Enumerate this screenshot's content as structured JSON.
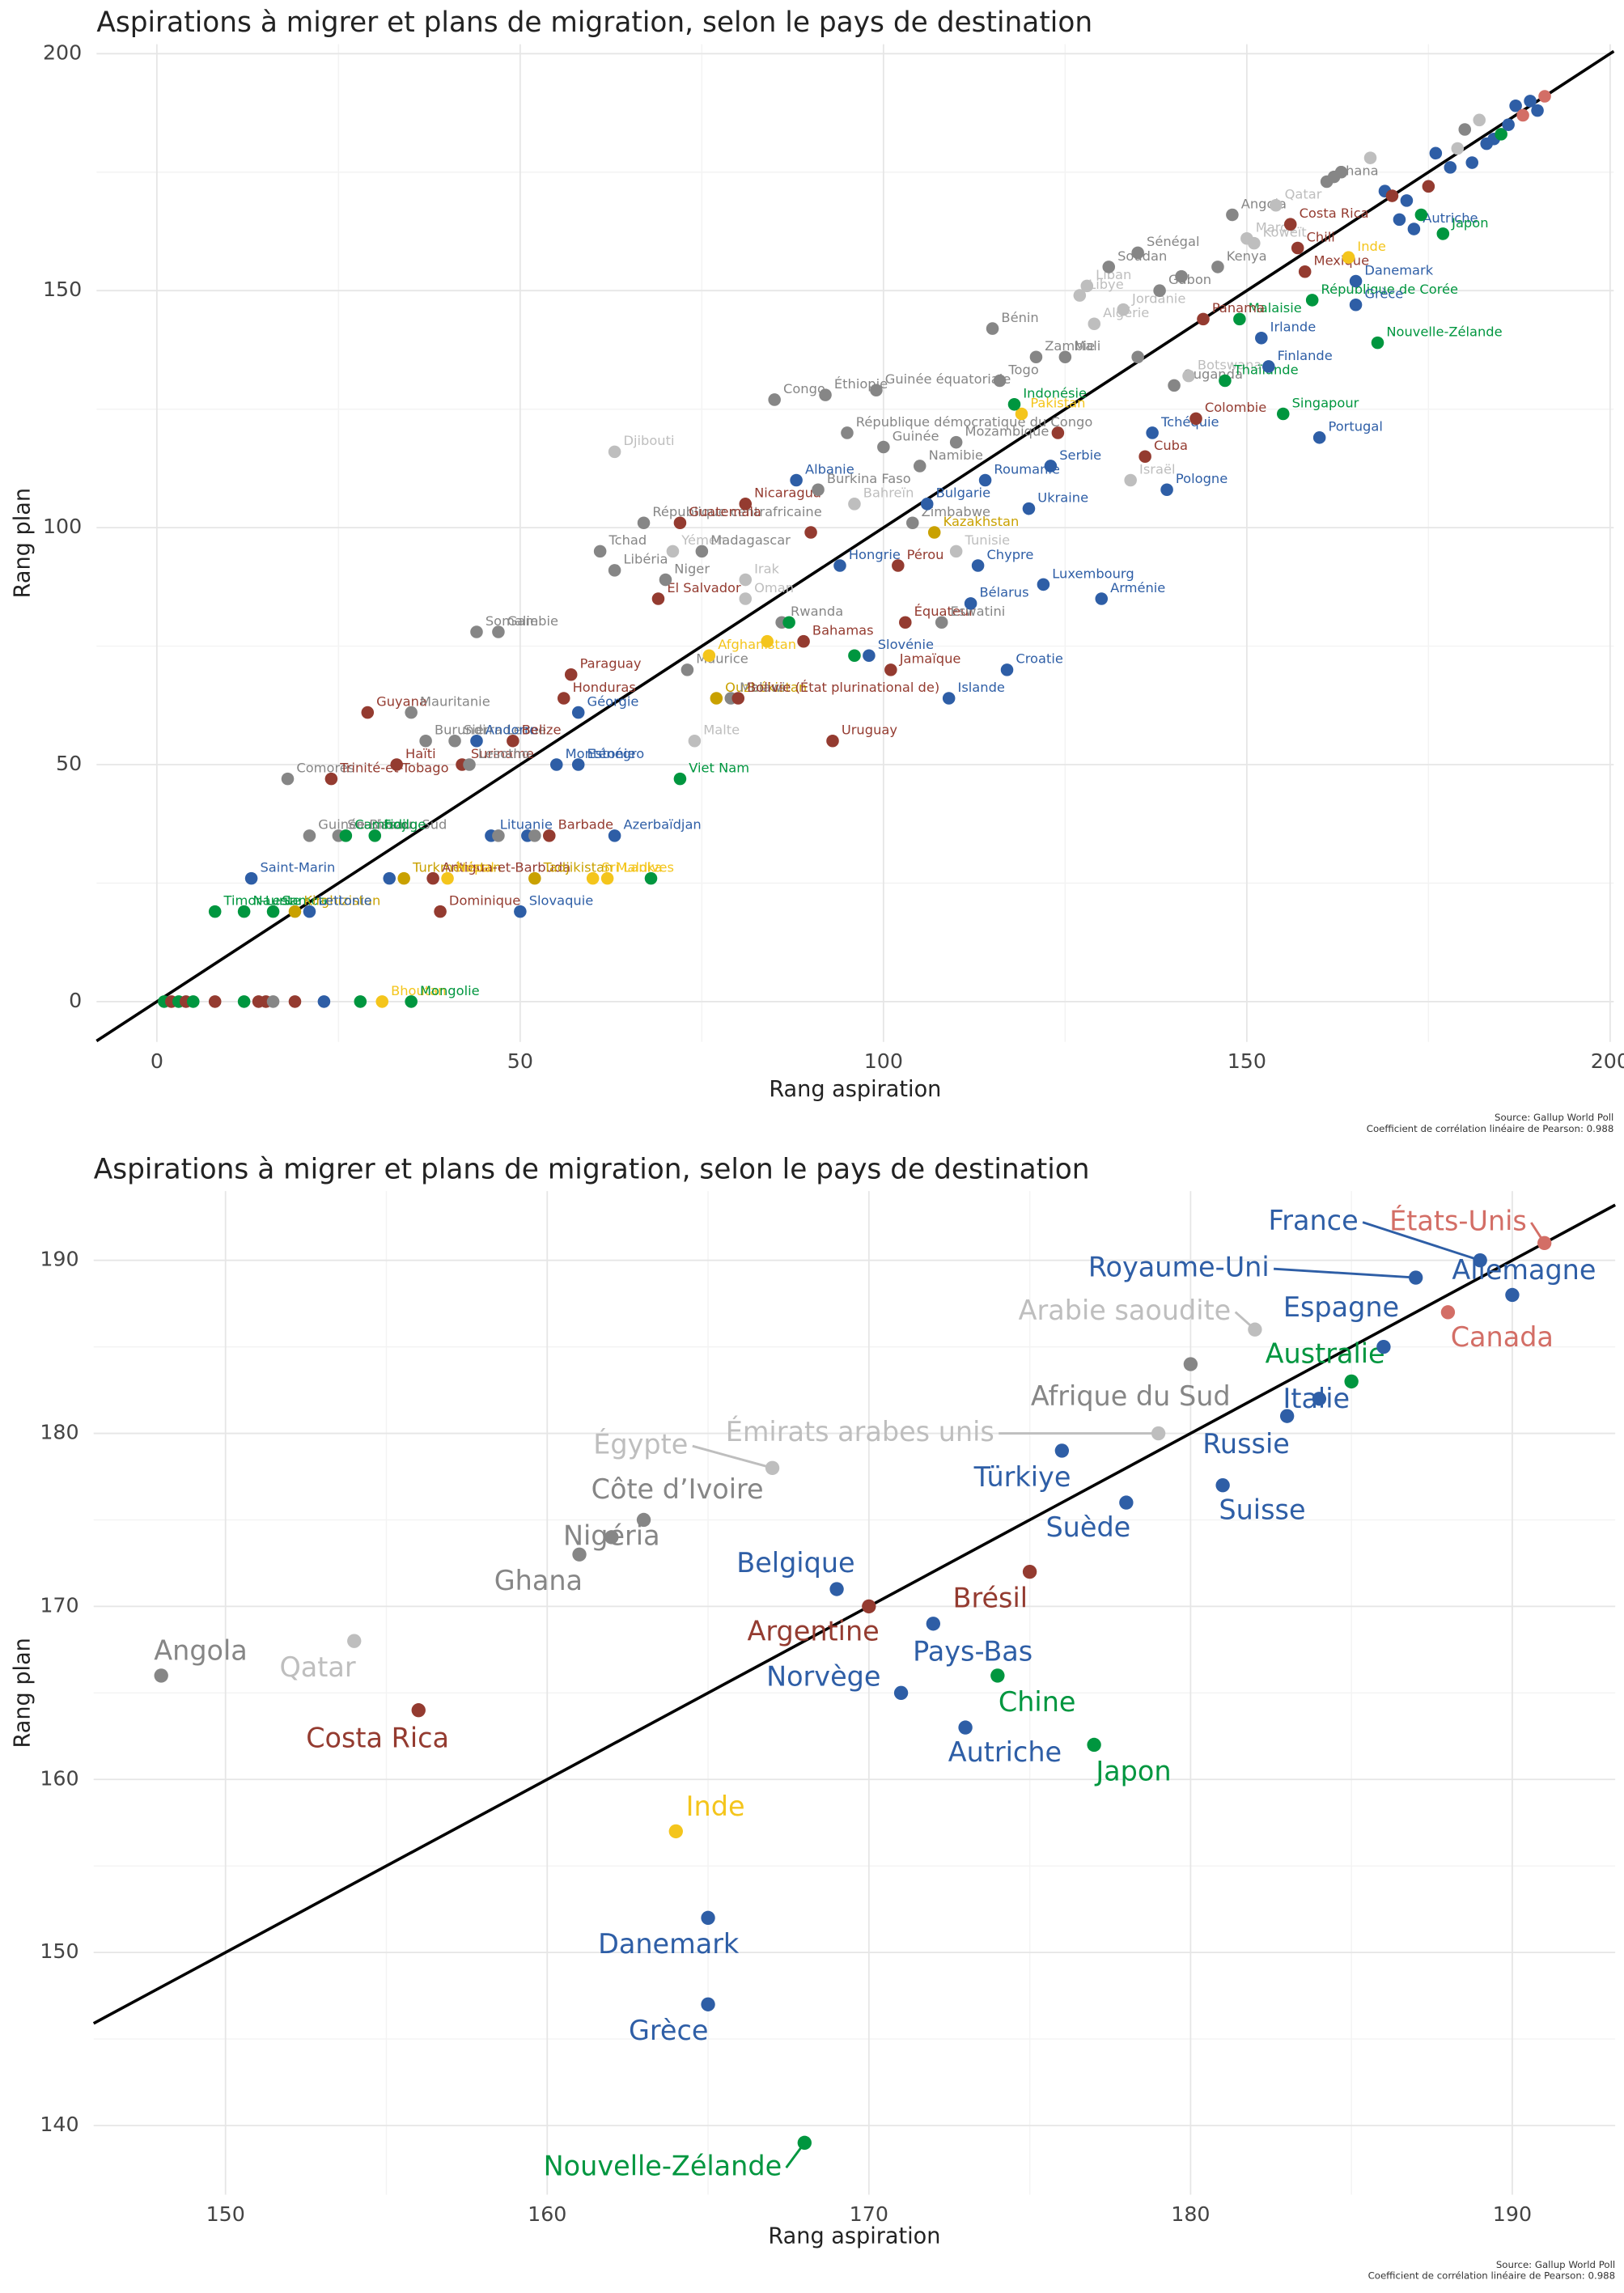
{
  "chart_data": [
    {
      "type": "scatter",
      "title": "Aspirations à migrer et plans de migration, selon le pays de destination",
      "x_label": "Rang aspiration",
      "y_label": "Rang plan",
      "source": "Source: Gallup World Poll",
      "note": "Coefficient de corrélation linéaire de Pearson: 0.988",
      "xlim": [
        -8.3,
        200.5
      ],
      "ylim": [
        -8.5,
        202
      ],
      "xticks": [
        0,
        50,
        100,
        150,
        200
      ],
      "yticks": [
        0,
        50,
        100,
        150,
        200
      ],
      "grid": true,
      "diagonal": true,
      "labels": [
        null,
        null,
        null,
        null,
        null,
        null,
        null,
        null,
        null,
        null,
        null,
        null,
        null,
        "Bhoutan",
        "Mongolie",
        "Timor-Leste",
        "Nauru",
        "Samoa",
        "Kirghizistan",
        "Lettonie",
        "Saint-Marin",
        "Dominique",
        "Slovaquie",
        null,
        "Turkménistan",
        "Antigua-et-Barbuda",
        "Népal",
        "Tadjikistan",
        "Sri Lanka",
        "Maldives",
        null,
        "Guinée-Bissau",
        "Soudan du Sud",
        "Cambodge",
        "Fidji",
        "Lituanie",
        null,
        null,
        null,
        "Barbade",
        "Azerbaïdjan",
        "Comores",
        "Trinité-et-Tobago",
        "Haïti",
        "Suriname",
        "Lesotho",
        "Monténégro",
        "Estonie",
        "Burundi",
        "Sierra Leone",
        "Andorre",
        "Belize",
        "Guyana",
        "Mauritanie",
        "Géorgie",
        "Honduras",
        "Paraguay",
        "Somalie",
        "Gambie",
        "Viet Nam",
        "Malte",
        "Uruguay",
        "Ouzbékistan",
        "Malawi",
        "Bolivie (État plurinational de)",
        "Maurice",
        "Afghanistan",
        null,
        "Bahamas",
        "Rwanda",
        null,
        "Oman",
        "Irak",
        "El Salvador",
        "Niger",
        "Libéria",
        "Tchad",
        "Yémen",
        "Madagascar",
        "République centrafricaine",
        "Guatemala",
        "Nicaragua",
        "Djibouti",
        "Albanie",
        "Burkina Faso",
        "Bahreïn",
        null,
        "Zimbabwe",
        "Hongrie",
        "Pérou",
        "Jamaïque",
        "Équateur",
        null,
        "Slovénie",
        "Eswatini",
        "Islande",
        "Croatie",
        "Bélarus",
        "Chypre",
        "Luxembourg",
        "Arménie",
        "Tunisie",
        "Kazakhstan",
        "Bulgarie",
        "Ukraine",
        "Roumanie",
        "Serbie",
        "Cuba",
        "Israël",
        "Pologne",
        "Namibie",
        "Guinée",
        "Mozambique",
        "République démocratique du Congo",
        null,
        "Tchéquie",
        "Colombie",
        "Pakistan",
        "Indonésie",
        "Congo",
        "Éthiopie",
        "Guinée équatoriale",
        "Togo",
        "Zambie",
        "Mali",
        "Bénin",
        "Ouganda",
        "Botswana",
        "Thaïlande",
        "Singapour",
        "Portugal",
        "Finlande",
        "Irlande",
        "Malaisie",
        "Panama",
        "Algérie",
        "Jordanie",
        "Libye",
        "Liban",
        "Gabon",
        "Soudan",
        "Sénégal",
        "Kenya",
        "Maroc",
        "Koweït",
        "Chili",
        "Mexique",
        "République de Corée",
        null,
        null,
        "Angola",
        "Qatar",
        "Costa Rica",
        "Ghana",
        null,
        null,
        null,
        "Inde",
        "Danemark",
        "Grèce",
        "Nouvelle-Zélande",
        null,
        null,
        null,
        null,
        "Autriche",
        null,
        null,
        null,
        "Japon",
        null,
        null,
        null,
        null,
        null,
        null,
        null,
        null,
        null,
        null,
        null,
        null,
        null,
        null
      ],
      "x": [
        1,
        2,
        3,
        4,
        5,
        8,
        12,
        14,
        15,
        16,
        19,
        23,
        28,
        31,
        35,
        8,
        12,
        16,
        19,
        21,
        13,
        39,
        50,
        32,
        34,
        38,
        40,
        52,
        60,
        62,
        68,
        21,
        25,
        26,
        30,
        46,
        47,
        51,
        52,
        54,
        63,
        18,
        24,
        33,
        42,
        43,
        55,
        58,
        37,
        41,
        44,
        49,
        29,
        35,
        58,
        56,
        57,
        44,
        47,
        72,
        74,
        93,
        77,
        79,
        80,
        73,
        76,
        84,
        89,
        86,
        87,
        81,
        81,
        69,
        70,
        63,
        61,
        71,
        75,
        67,
        72,
        81,
        63,
        88,
        91,
        96,
        90,
        104,
        94,
        102,
        101,
        103,
        96,
        98,
        108,
        109,
        117,
        112,
        113,
        122,
        130,
        110,
        107,
        106,
        120,
        114,
        123,
        136,
        134,
        139,
        105,
        100,
        110,
        95,
        124,
        137,
        143,
        119,
        118,
        85,
        92,
        99,
        116,
        121,
        125,
        115,
        140,
        142,
        147,
        155,
        160,
        153,
        152,
        149,
        144,
        129,
        133,
        127,
        128,
        138,
        131,
        135,
        146,
        150,
        151,
        157,
        158,
        159,
        141,
        135,
        148,
        154,
        156,
        161,
        162,
        163,
        167,
        164,
        165,
        165,
        168,
        169,
        170,
        171,
        172,
        173,
        174,
        175,
        176,
        177,
        178,
        179,
        180,
        181,
        182,
        183,
        184,
        185,
        186,
        187,
        188,
        189,
        190,
        191
      ],
      "y": [
        0,
        0,
        0,
        0,
        0,
        0,
        0,
        0,
        0,
        0,
        0,
        0,
        0,
        0,
        0,
        19,
        19,
        19,
        19,
        19,
        26,
        19,
        19,
        26,
        26,
        26,
        26,
        26,
        26,
        26,
        26,
        35,
        35,
        35,
        35,
        35,
        35,
        35,
        35,
        35,
        35,
        47,
        47,
        50,
        50,
        50,
        50,
        50,
        55,
        55,
        55,
        55,
        61,
        61,
        61,
        64,
        69,
        78,
        78,
        47,
        55,
        55,
        64,
        64,
        64,
        70,
        73,
        76,
        76,
        80,
        80,
        85,
        89,
        85,
        89,
        91,
        95,
        95,
        95,
        101,
        101,
        105,
        116,
        110,
        108,
        105,
        99,
        101,
        92,
        92,
        70,
        80,
        73,
        73,
        80,
        64,
        70,
        84,
        92,
        88,
        85,
        95,
        99,
        105,
        104,
        110,
        113,
        115,
        110,
        108,
        113,
        117,
        118,
        120,
        120,
        120,
        123,
        124,
        126,
        127,
        128,
        129,
        131,
        136,
        136,
        142,
        130,
        132,
        131,
        124,
        119,
        134,
        140,
        144,
        144,
        143,
        146,
        149,
        151,
        150,
        155,
        158,
        155,
        161,
        160,
        159,
        154,
        148,
        153,
        136,
        166,
        168,
        164,
        173,
        174,
        175,
        178,
        157,
        152,
        147,
        139,
        171,
        170,
        165,
        169,
        163,
        166,
        172,
        179,
        162,
        176,
        180,
        184,
        177,
        186,
        181,
        182,
        183,
        185,
        189,
        187,
        190,
        188,
        191
      ],
      "colors": [
        "#00963f",
        "#943b30",
        "#00963f",
        "#943b30",
        "#00963f",
        "#943b30",
        "#00963f",
        "#943b30",
        "#943b30",
        "#868686",
        "#943b30",
        "#2e5ea6",
        "#00963f",
        "#f4c51c",
        "#00963f",
        "#00963f",
        "#00963f",
        "#00963f",
        "#c9a100",
        "#2e5ea6",
        "#2e5ea6",
        "#943b30",
        "#2e5ea6",
        "#2e5ea6",
        "#c9a100",
        "#943b30",
        "#f4c51c",
        "#c9a100",
        "#f4c51c",
        "#f4c51c",
        "#00963f",
        "#868686",
        "#868686",
        "#00963f",
        "#00963f",
        "#2e5ea6",
        "#868686",
        "#2e5ea6",
        "#868686",
        "#943b30",
        "#2e5ea6",
        "#868686",
        "#943b30",
        "#943b30",
        "#943b30",
        "#868686",
        "#2e5ea6",
        "#2e5ea6",
        "#868686",
        "#868686",
        "#2e5ea6",
        "#943b30",
        "#943b30",
        "#868686",
        "#2e5ea6",
        "#943b30",
        "#943b30",
        "#868686",
        "#868686",
        "#00963f",
        "#bebebe",
        "#943b30",
        "#c9a100",
        "#868686",
        "#943b30",
        "#868686",
        "#f4c51c",
        "#f4c51c",
        "#943b30",
        "#868686",
        "#00963f",
        "#bebebe",
        "#bebebe",
        "#943b30",
        "#868686",
        "#868686",
        "#868686",
        "#bebebe",
        "#868686",
        "#868686",
        "#943b30",
        "#943b30",
        "#bebebe",
        "#2e5ea6",
        "#868686",
        "#bebebe",
        "#943b30",
        "#868686",
        "#2e5ea6",
        "#943b30",
        "#943b30",
        "#943b30",
        "#00963f",
        "#2e5ea6",
        "#868686",
        "#2e5ea6",
        "#2e5ea6",
        "#2e5ea6",
        "#2e5ea6",
        "#2e5ea6",
        "#2e5ea6",
        "#bebebe",
        "#c9a100",
        "#2e5ea6",
        "#2e5ea6",
        "#2e5ea6",
        "#2e5ea6",
        "#943b30",
        "#bebebe",
        "#2e5ea6",
        "#868686",
        "#868686",
        "#868686",
        "#868686",
        "#943b30",
        "#2e5ea6",
        "#943b30",
        "#f4c51c",
        "#00963f",
        "#868686",
        "#868686",
        "#868686",
        "#868686",
        "#868686",
        "#868686",
        "#868686",
        "#868686",
        "#bebebe",
        "#00963f",
        "#00963f",
        "#2e5ea6",
        "#2e5ea6",
        "#2e5ea6",
        "#00963f",
        "#943b30",
        "#bebebe",
        "#bebebe",
        "#bebebe",
        "#bebebe",
        "#868686",
        "#868686",
        "#868686",
        "#868686",
        "#bebebe",
        "#bebebe",
        "#943b30",
        "#943b30",
        "#00963f",
        "#868686",
        "#868686",
        "#868686",
        "#bebebe",
        "#943b30",
        "#868686",
        "#868686",
        "#868686",
        "#bebebe",
        "#f4c51c",
        "#2e5ea6",
        "#2e5ea6",
        "#00963f",
        "#2e5ea6",
        "#943b30",
        "#2e5ea6",
        "#2e5ea6",
        "#2e5ea6",
        "#00963f",
        "#943b30",
        "#2e5ea6",
        "#00963f",
        "#2e5ea6",
        "#bebebe",
        "#868686",
        "#2e5ea6",
        "#bebebe",
        "#2e5ea6",
        "#2e5ea6",
        "#00963f",
        "#2e5ea6",
        "#2e5ea6",
        "#d36e66",
        "#2e5ea6",
        "#2e5ea6",
        "#d36e66"
      ]
    },
    {
      "type": "scatter",
      "title": "Aspirations à migrer et plans de migration, selon le pays de destination",
      "x_label": "Rang aspiration",
      "y_label": "Rang plan",
      "source": "Source: Gallup World Poll",
      "note": "Coefficient de corrélation linéaire de Pearson: 0.988",
      "xlim": [
        145.9,
        193.2
      ],
      "ylim": [
        136,
        194
      ],
      "xticks": [
        150,
        160,
        170,
        180,
        190
      ],
      "yticks": [
        140,
        150,
        160,
        170,
        180,
        190
      ],
      "grid": true,
      "diagonal": true,
      "labels": [
        "Angola",
        "Qatar",
        "Costa Rica",
        "Ghana",
        "Nigéria",
        "Côte d’Ivoire",
        "Égypte",
        "Inde",
        "Danemark",
        "Grèce",
        "Nouvelle-Zélande",
        "Belgique",
        "Argentine",
        "Norvège",
        "Pays-Bas",
        "Autriche",
        "Chine",
        "Brésil",
        "Türkiye",
        "Japon",
        "Suède",
        "Émirats arabes unis",
        "Afrique du Sud",
        "Suisse",
        "Arabie saoudite",
        "Russie",
        "Italie",
        "Australie",
        "Espagne",
        "Royaume-Uni",
        "Canada",
        "France",
        "Allemagne",
        "États-Unis"
      ],
      "x": [
        148,
        154,
        156,
        161,
        162,
        163,
        167,
        164,
        165,
        165,
        168,
        169,
        170,
        171,
        172,
        173,
        174,
        175,
        176,
        177,
        178,
        179,
        180,
        181,
        182,
        183,
        184,
        185,
        186,
        187,
        188,
        189,
        190,
        191
      ],
      "y": [
        166,
        168,
        164,
        173,
        174,
        175,
        178,
        157,
        152,
        147,
        139,
        171,
        170,
        165,
        169,
        163,
        166,
        172,
        179,
        162,
        176,
        180,
        184,
        177,
        186,
        181,
        182,
        183,
        185,
        189,
        187,
        190,
        188,
        191
      ],
      "colors": [
        "#868686",
        "#bebebe",
        "#943b30",
        "#868686",
        "#868686",
        "#868686",
        "#bebebe",
        "#f4c51c",
        "#2e5ea6",
        "#2e5ea6",
        "#00963f",
        "#2e5ea6",
        "#943b30",
        "#2e5ea6",
        "#2e5ea6",
        "#2e5ea6",
        "#00963f",
        "#943b30",
        "#2e5ea6",
        "#00963f",
        "#2e5ea6",
        "#bebebe",
        "#868686",
        "#2e5ea6",
        "#bebebe",
        "#2e5ea6",
        "#2e5ea6",
        "#00963f",
        "#2e5ea6",
        "#2e5ea6",
        "#d36e66",
        "#2e5ea6",
        "#2e5ea6",
        "#d36e66"
      ]
    }
  ]
}
